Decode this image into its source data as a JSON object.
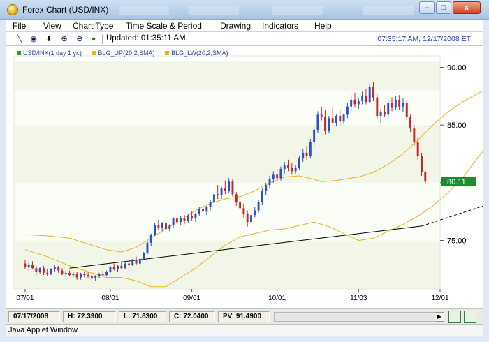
{
  "window": {
    "title": "Forex Chart (USD/INX)",
    "minimize": "–",
    "maximize": "□",
    "close": "x"
  },
  "menu": [
    "File",
    "View",
    "Chart Type",
    "Time Scale & Period",
    "Drawing",
    "Indicators",
    "Help"
  ],
  "toolbar": {
    "updated": "Updated: 01:35:11 AM",
    "clock": "07:35:17 AM, 12/17/2008 ET",
    "icons": [
      "draw-line-icon",
      "crosshair-icon",
      "arrow-down-icon",
      "zoom-in-icon",
      "zoom-out-icon",
      "dot-icon"
    ]
  },
  "legend": [
    {
      "label": "USD/INX(1 day 1 yr.)",
      "color": "#2e9e3e"
    },
    {
      "label": "BLG_UP(20,2,SMA)",
      "color": "#e6b31e"
    },
    {
      "label": "BLG_LW(20,2,SMA)",
      "color": "#e6b31e"
    }
  ],
  "status": {
    "date": "07/17/2008",
    "high": "H: 72.3900",
    "low": "L: 71.8300",
    "close": "C: 72.0400",
    "pv": "PV: 91.4900"
  },
  "applet_label": "Java Applet Window",
  "chart_data": {
    "type": "candlestick",
    "symbol": "USD/INX",
    "y_ticks": [
      "75.00",
      "80.00",
      "85.00",
      "90.00"
    ],
    "x_ticks": [
      "07/01",
      "08/01",
      "09/01",
      "10/01",
      "11/03",
      "12/01"
    ],
    "last_price_label": "80.11",
    "last_price": 80.11,
    "ylim": [
      70.8,
      91.0
    ],
    "up_color": "#2a52c8",
    "down_color": "#cc2222",
    "band_color": "#e6b31e",
    "last_label_bg": "#1f8a2f",
    "trendline": [
      [
        0.0,
        72.6
      ],
      [
        95.0,
        76.25
      ]
    ],
    "trendline_dashed": [
      [
        95.0,
        76.25
      ],
      [
        148.0,
        81.8
      ]
    ],
    "upper_band": [
      [
        0,
        75.5
      ],
      [
        6,
        75.4
      ],
      [
        12,
        75.2
      ],
      [
        18,
        74.6
      ],
      [
        22,
        74.2
      ],
      [
        26,
        74.0
      ],
      [
        30,
        74.4
      ],
      [
        34,
        75.2
      ],
      [
        38,
        76.0
      ],
      [
        42,
        76.8
      ],
      [
        46,
        77.6
      ],
      [
        50,
        78.2
      ],
      [
        54,
        78.6
      ],
      [
        58,
        78.8
      ],
      [
        62,
        79.3
      ],
      [
        66,
        80.0
      ],
      [
        70,
        80.5
      ],
      [
        74,
        80.6
      ],
      [
        78,
        80.3
      ],
      [
        80,
        80.1
      ],
      [
        84,
        80.2
      ],
      [
        88,
        80.4
      ],
      [
        90,
        80.5
      ],
      [
        94,
        80.9
      ],
      [
        98,
        81.6
      ],
      [
        102,
        82.5
      ],
      [
        106,
        83.7
      ],
      [
        110,
        85.0
      ],
      [
        114,
        86.1
      ],
      [
        118,
        87.0
      ],
      [
        122,
        87.7
      ],
      [
        126,
        88.4
      ],
      [
        130,
        88.9
      ],
      [
        134,
        88.6
      ],
      [
        138,
        88.4
      ],
      [
        142,
        88.8
      ],
      [
        146,
        89.7
      ]
    ],
    "lower_band": [
      [
        0,
        74.2
      ],
      [
        6,
        73.6
      ],
      [
        12,
        72.8
      ],
      [
        18,
        72.2
      ],
      [
        22,
        71.8
      ],
      [
        26,
        71.8
      ],
      [
        30,
        71.5
      ],
      [
        34,
        71.0
      ],
      [
        38,
        71.0
      ],
      [
        42,
        71.8
      ],
      [
        46,
        72.6
      ],
      [
        50,
        73.6
      ],
      [
        54,
        74.6
      ],
      [
        58,
        75.3
      ],
      [
        62,
        75.6
      ],
      [
        66,
        75.9
      ],
      [
        70,
        76.0
      ],
      [
        74,
        76.3
      ],
      [
        78,
        76.6
      ],
      [
        82,
        76.2
      ],
      [
        86,
        75.6
      ],
      [
        90,
        75.0
      ],
      [
        94,
        75.2
      ],
      [
        98,
        75.8
      ],
      [
        102,
        76.4
      ],
      [
        106,
        77.1
      ],
      [
        110,
        78.0
      ],
      [
        114,
        79.1
      ],
      [
        118,
        80.4
      ],
      [
        122,
        82.1
      ],
      [
        126,
        83.7
      ],
      [
        130,
        84.5
      ],
      [
        134,
        84.7
      ],
      [
        138,
        85.0
      ],
      [
        142,
        84.1
      ],
      [
        146,
        80.5
      ]
    ],
    "candles": [
      [
        0,
        73.0,
        73.3,
        72.5,
        72.7
      ],
      [
        1,
        72.7,
        73.1,
        72.4,
        72.9
      ],
      [
        2,
        72.9,
        73.2,
        72.5,
        72.6
      ],
      [
        3,
        72.6,
        72.8,
        72.0,
        72.3
      ],
      [
        4,
        72.3,
        72.7,
        72.1,
        72.6
      ],
      [
        5,
        72.6,
        72.8,
        72.0,
        72.2
      ],
      [
        6,
        72.2,
        72.5,
        71.9,
        72.1
      ],
      [
        7,
        72.1,
        72.6,
        72.0,
        72.5
      ],
      [
        8,
        72.5,
        72.9,
        72.3,
        72.7
      ],
      [
        9,
        72.7,
        72.8,
        72.2,
        72.4
      ],
      [
        10,
        72.4,
        72.6,
        72.0,
        72.1
      ],
      [
        11,
        72.1,
        72.4,
        71.8,
        72.2
      ],
      [
        12,
        72.2,
        72.4,
        71.9,
        72.0
      ],
      [
        13,
        72.0,
        72.3,
        71.8,
        72.1
      ],
      [
        14,
        72.1,
        72.3,
        71.6,
        71.8
      ],
      [
        15,
        71.8,
        72.2,
        71.6,
        72.1
      ],
      [
        16,
        72.1,
        72.3,
        71.8,
        72.0
      ],
      [
        17,
        72.0,
        72.3,
        71.7,
        71.9
      ],
      [
        18,
        71.9,
        72.1,
        71.5,
        71.7
      ],
      [
        19,
        71.7,
        72.0,
        71.5,
        71.9
      ],
      [
        20,
        71.9,
        72.2,
        71.7,
        72.1
      ],
      [
        21,
        72.1,
        72.4,
        71.9,
        72.0
      ],
      [
        22,
        72.0,
        72.4,
        71.9,
        72.3
      ],
      [
        23,
        72.3,
        72.8,
        72.2,
        72.7
      ],
      [
        24,
        72.7,
        73.0,
        72.4,
        72.5
      ],
      [
        25,
        72.5,
        72.9,
        72.3,
        72.8
      ],
      [
        26,
        72.8,
        73.1,
        72.5,
        72.6
      ],
      [
        27,
        72.6,
        73.1,
        72.5,
        73.0
      ],
      [
        28,
        73.0,
        73.3,
        72.7,
        72.9
      ],
      [
        29,
        72.9,
        73.4,
        72.8,
        73.3
      ],
      [
        30,
        73.3,
        73.6,
        72.9,
        73.0
      ],
      [
        31,
        73.0,
        73.5,
        72.9,
        73.4
      ],
      [
        32,
        73.4,
        74.0,
        73.3,
        73.9
      ],
      [
        33,
        73.9,
        75.0,
        73.8,
        74.8
      ],
      [
        34,
        74.8,
        75.6,
        74.5,
        75.5
      ],
      [
        35,
        75.5,
        76.5,
        75.4,
        76.3
      ],
      [
        36,
        76.3,
        76.8,
        75.9,
        76.1
      ],
      [
        37,
        76.1,
        76.6,
        75.8,
        76.5
      ],
      [
        38,
        76.5,
        76.8,
        75.9,
        76.0
      ],
      [
        39,
        76.0,
        76.4,
        75.8,
        76.3
      ],
      [
        40,
        76.3,
        77.0,
        76.1,
        76.9
      ],
      [
        41,
        76.9,
        77.3,
        76.4,
        76.6
      ],
      [
        42,
        76.6,
        77.1,
        76.3,
        76.9
      ],
      [
        43,
        76.9,
        77.2,
        76.4,
        76.7
      ],
      [
        44,
        76.7,
        77.3,
        76.5,
        77.1
      ],
      [
        45,
        77.1,
        77.5,
        76.7,
        76.9
      ],
      [
        46,
        76.9,
        77.4,
        76.6,
        77.3
      ],
      [
        47,
        77.3,
        77.9,
        77.1,
        77.7
      ],
      [
        48,
        77.7,
        78.2,
        77.3,
        77.5
      ],
      [
        49,
        77.5,
        78.0,
        77.2,
        77.9
      ],
      [
        50,
        77.9,
        78.5,
        77.6,
        78.3
      ],
      [
        51,
        78.3,
        79.2,
        78.1,
        79.0
      ],
      [
        52,
        79.0,
        79.8,
        78.6,
        78.9
      ],
      [
        53,
        78.9,
        79.7,
        78.6,
        79.5
      ],
      [
        54,
        79.5,
        80.2,
        79.0,
        79.3
      ],
      [
        55,
        79.3,
        80.4,
        79.1,
        80.1
      ],
      [
        56,
        80.1,
        80.3,
        78.8,
        79.0
      ],
      [
        57,
        79.0,
        79.2,
        78.0,
        78.3
      ],
      [
        58,
        78.3,
        78.9,
        77.6,
        77.8
      ],
      [
        59,
        77.8,
        78.2,
        77.0,
        77.3
      ],
      [
        60,
        77.3,
        77.6,
        76.2,
        76.6
      ],
      [
        61,
        76.6,
        77.4,
        76.4,
        77.2
      ],
      [
        62,
        77.2,
        77.9,
        77.0,
        77.6
      ],
      [
        63,
        77.6,
        78.5,
        77.4,
        78.3
      ],
      [
        64,
        78.3,
        79.5,
        78.1,
        79.3
      ],
      [
        65,
        79.3,
        80.0,
        78.9,
        79.8
      ],
      [
        66,
        79.8,
        80.6,
        79.5,
        80.3
      ],
      [
        67,
        80.3,
        81.0,
        80.0,
        80.7
      ],
      [
        68,
        80.7,
        81.2,
        80.1,
        80.4
      ],
      [
        69,
        80.4,
        81.4,
        80.2,
        81.2
      ],
      [
        70,
        81.2,
        81.8,
        80.8,
        81.5
      ],
      [
        71,
        81.5,
        82.0,
        81.0,
        81.3
      ],
      [
        72,
        81.3,
        81.7,
        80.7,
        81.0
      ],
      [
        73,
        81.0,
        81.5,
        80.8,
        81.3
      ],
      [
        74,
        81.3,
        82.3,
        81.1,
        82.1
      ],
      [
        75,
        82.1,
        82.9,
        81.8,
        82.6
      ],
      [
        76,
        82.6,
        83.2,
        82.0,
        82.3
      ],
      [
        77,
        82.3,
        83.8,
        82.1,
        83.5
      ],
      [
        78,
        83.5,
        84.8,
        83.2,
        84.6
      ],
      [
        79,
        84.6,
        86.2,
        84.3,
        85.9
      ],
      [
        80,
        85.9,
        86.6,
        85.4,
        85.7
      ],
      [
        81,
        85.7,
        86.3,
        84.2,
        84.5
      ],
      [
        82,
        84.5,
        85.8,
        84.3,
        85.6
      ],
      [
        83,
        85.6,
        86.5,
        85.2,
        85.2
      ],
      [
        84,
        85.2,
        85.9,
        84.9,
        85.8
      ],
      [
        85,
        85.8,
        86.3,
        85.0,
        85.3
      ],
      [
        86,
        85.3,
        86.0,
        85.1,
        85.9
      ],
      [
        87,
        85.9,
        86.9,
        85.6,
        86.6
      ],
      [
        88,
        86.6,
        87.6,
        86.2,
        87.2
      ],
      [
        89,
        87.2,
        87.8,
        86.5,
        86.8
      ],
      [
        90,
        86.8,
        87.3,
        86.4,
        87.1
      ],
      [
        91,
        87.1,
        87.9,
        86.8,
        87.5
      ],
      [
        92,
        87.5,
        88.1,
        86.8,
        87.0
      ],
      [
        93,
        87.0,
        88.6,
        86.9,
        88.3
      ],
      [
        94,
        88.3,
        88.7,
        87.1,
        87.4
      ],
      [
        95,
        87.4,
        87.7,
        85.5,
        85.8
      ],
      [
        96,
        85.8,
        86.4,
        85.2,
        86.1
      ],
      [
        97,
        86.1,
        86.7,
        85.7,
        85.9
      ],
      [
        98,
        85.9,
        87.2,
        85.6,
        86.9
      ],
      [
        99,
        86.9,
        87.4,
        86.2,
        86.5
      ],
      [
        100,
        86.5,
        87.5,
        86.3,
        87.2
      ],
      [
        101,
        87.2,
        87.6,
        86.3,
        86.6
      ],
      [
        102,
        86.6,
        87.3,
        86.1,
        86.9
      ],
      [
        103,
        86.9,
        87.2,
        85.4,
        85.7
      ],
      [
        104,
        85.7,
        85.9,
        84.4,
        84.7
      ],
      [
        105,
        84.7,
        85.0,
        83.2,
        83.5
      ],
      [
        106,
        83.5,
        83.9,
        82.0,
        82.3
      ],
      [
        107,
        82.3,
        82.6,
        80.6,
        80.9
      ],
      [
        108,
        80.9,
        81.1,
        79.9,
        80.1
      ]
    ]
  }
}
